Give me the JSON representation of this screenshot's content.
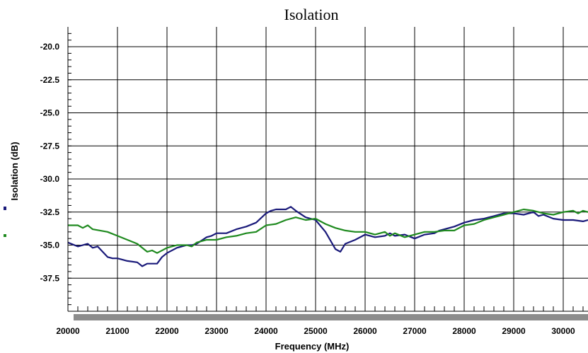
{
  "chart_data": {
    "type": "line",
    "title": "Isolation",
    "xlabel": "Frequency (MHz)",
    "ylabel": "Isolation (dB)",
    "xlim": [
      20000,
      30500
    ],
    "ylim": [
      -40.0,
      -18.5
    ],
    "x_ticks": [
      20000,
      21000,
      22000,
      23000,
      24000,
      25000,
      26000,
      27000,
      28000,
      29000,
      30000
    ],
    "x_tick_labels": [
      "20000",
      "21000",
      "22000",
      "23000",
      "24000",
      "25000",
      "26000",
      "27000",
      "28000",
      "29000",
      "30000"
    ],
    "y_ticks": [
      -20.0,
      -22.5,
      -25.0,
      -27.5,
      -30.0,
      -32.5,
      -35.0,
      -37.5
    ],
    "y_tick_labels": [
      "-20.0",
      "-22.5",
      "-25.0",
      "-27.5",
      "-30.0",
      "-32.5",
      "-35.0",
      "-37.5"
    ],
    "grid": true,
    "series": [
      {
        "color": "#1a1a7a",
        "x": [
          20000,
          20200,
          20400,
          20500,
          20600,
          20800,
          20900,
          21000,
          21200,
          21400,
          21500,
          21600,
          21800,
          21900,
          22000,
          22200,
          22400,
          22500,
          22600,
          22800,
          22900,
          23000,
          23200,
          23400,
          23500,
          23600,
          23800,
          24000,
          24100,
          24200,
          24400,
          24500,
          24600,
          24800,
          25000,
          25200,
          25400,
          25500,
          25600,
          25800,
          26000,
          26200,
          26400,
          26500,
          26600,
          26800,
          27000,
          27200,
          27400,
          27500,
          27600,
          27800,
          28000,
          28200,
          28400,
          28500,
          28600,
          28800,
          29000,
          29200,
          29400,
          29500,
          29600,
          29800,
          30000,
          30200,
          30400,
          30500
        ],
        "y": [
          -34.8,
          -35.1,
          -34.9,
          -35.2,
          -35.1,
          -35.9,
          -36.0,
          -36.0,
          -36.2,
          -36.3,
          -36.6,
          -36.4,
          -36.4,
          -35.9,
          -35.6,
          -35.2,
          -35.0,
          -35.0,
          -34.9,
          -34.4,
          -34.3,
          -34.1,
          -34.1,
          -33.8,
          -33.7,
          -33.6,
          -33.3,
          -32.6,
          -32.4,
          -32.3,
          -32.3,
          -32.1,
          -32.4,
          -32.9,
          -33.1,
          -34.0,
          -35.3,
          -35.5,
          -34.9,
          -34.6,
          -34.2,
          -34.4,
          -34.3,
          -34.1,
          -34.3,
          -34.2,
          -34.5,
          -34.2,
          -34.1,
          -33.9,
          -33.8,
          -33.6,
          -33.3,
          -33.1,
          -33.0,
          -32.9,
          -32.8,
          -32.6,
          -32.6,
          -32.7,
          -32.5,
          -32.8,
          -32.7,
          -33.0,
          -33.1,
          -33.1,
          -33.2,
          -33.1
        ]
      },
      {
        "color": "#1f8a1f",
        "x": [
          20000,
          20200,
          20300,
          20400,
          20500,
          20800,
          21000,
          21200,
          21400,
          21600,
          21700,
          21800,
          22000,
          22200,
          22400,
          22500,
          22600,
          22800,
          23000,
          23200,
          23400,
          23600,
          23800,
          24000,
          24200,
          24400,
          24600,
          24800,
          25000,
          25200,
          25400,
          25600,
          25800,
          26000,
          26200,
          26400,
          26500,
          26600,
          26800,
          27000,
          27200,
          27400,
          27600,
          27800,
          28000,
          28200,
          28400,
          28600,
          28800,
          29000,
          29200,
          29400,
          29600,
          29800,
          30000,
          30200,
          30300,
          30400,
          30500
        ],
        "y": [
          -33.5,
          -33.5,
          -33.7,
          -33.5,
          -33.8,
          -34.0,
          -34.3,
          -34.6,
          -34.9,
          -35.5,
          -35.4,
          -35.6,
          -35.2,
          -35.0,
          -35.0,
          -35.1,
          -34.8,
          -34.6,
          -34.6,
          -34.4,
          -34.3,
          -34.1,
          -34.0,
          -33.5,
          -33.4,
          -33.1,
          -32.9,
          -33.1,
          -33.0,
          -33.4,
          -33.7,
          -33.9,
          -34.0,
          -34.0,
          -34.2,
          -34.0,
          -34.3,
          -34.1,
          -34.4,
          -34.2,
          -34.0,
          -34.0,
          -33.9,
          -33.9,
          -33.5,
          -33.4,
          -33.1,
          -32.9,
          -32.7,
          -32.5,
          -32.3,
          -32.4,
          -32.6,
          -32.7,
          -32.5,
          -32.4,
          -32.6,
          -32.4,
          -32.5
        ]
      }
    ]
  }
}
